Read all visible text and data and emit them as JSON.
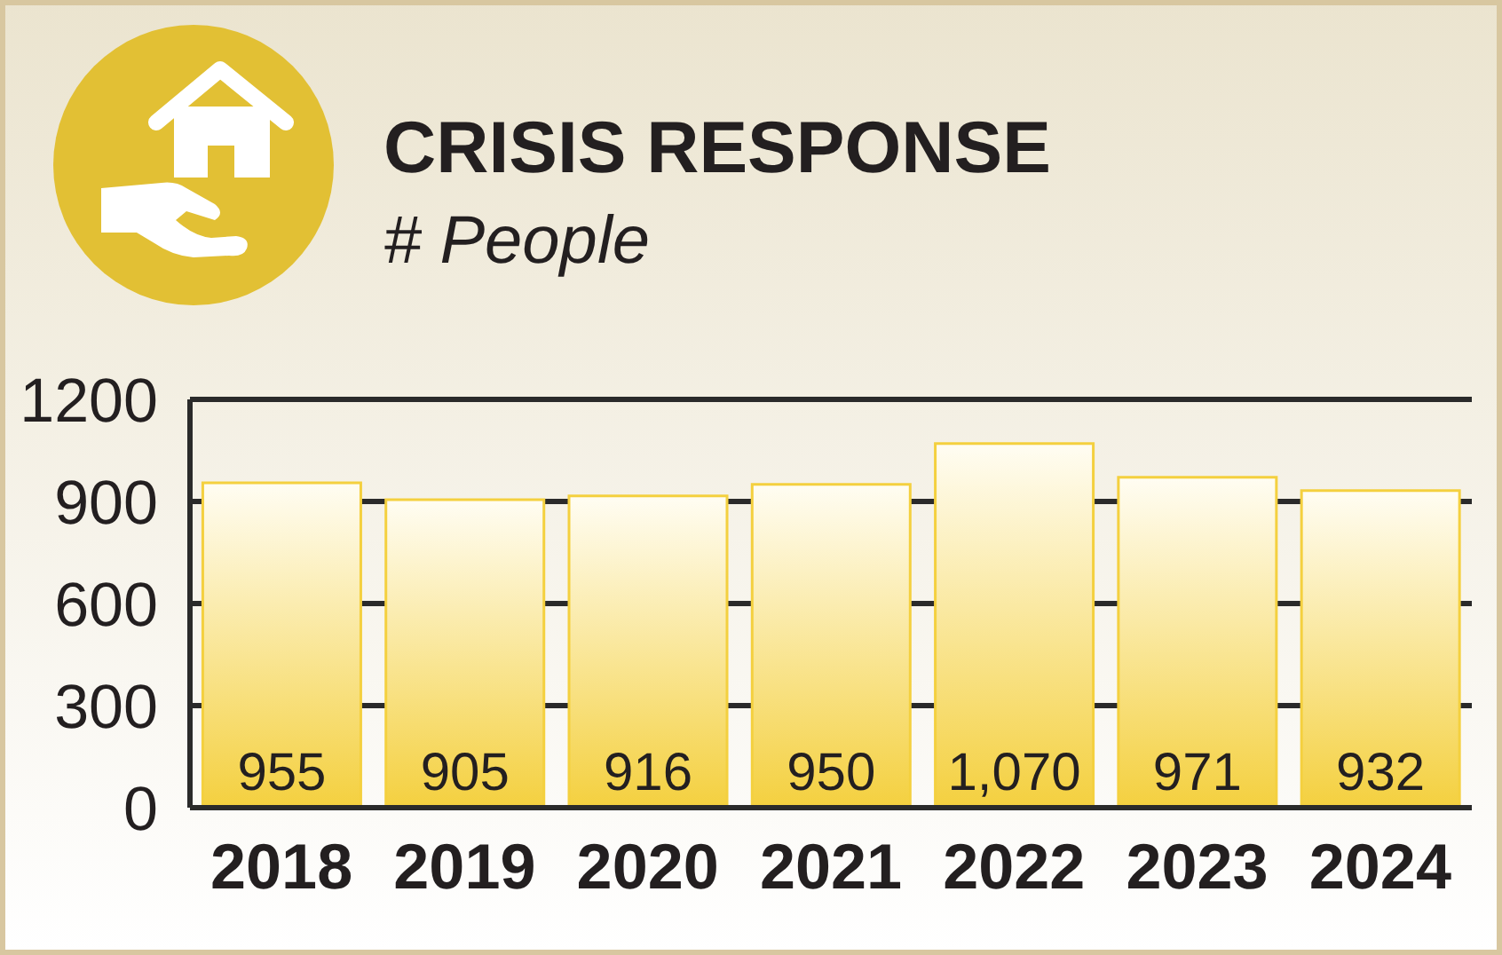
{
  "chart_data": {
    "type": "bar",
    "title": "CRISIS RESPONSE",
    "subtitle": "# People",
    "categories": [
      "2018",
      "2019",
      "2020",
      "2021",
      "2022",
      "2023",
      "2024"
    ],
    "values": [
      955,
      905,
      916,
      950,
      1070,
      971,
      932
    ],
    "value_labels": [
      "955",
      "905",
      "916",
      "950",
      "1,070",
      "971",
      "932"
    ],
    "color": "#f4d03f",
    "ylim": [
      0,
      1200
    ],
    "yticks": [
      0,
      300,
      600,
      900,
      1200
    ],
    "grid": "y"
  }
}
